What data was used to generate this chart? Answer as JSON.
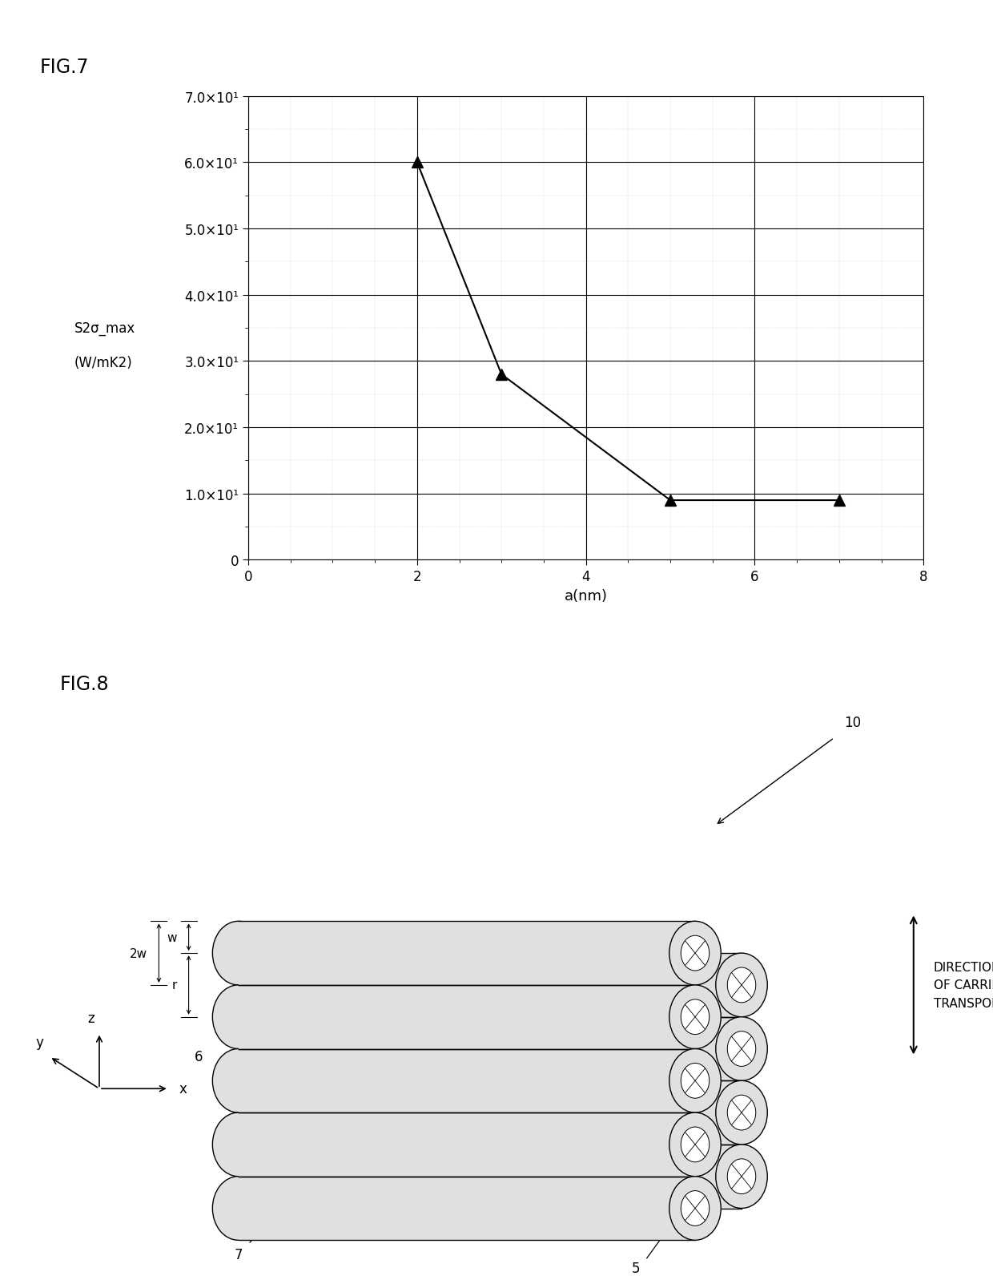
{
  "fig7": {
    "title": "FIG.7",
    "x_data": [
      2,
      3,
      5,
      7
    ],
    "y_data": [
      60,
      28,
      9,
      9
    ],
    "xlabel": "a(nm)",
    "ylabel_line1": "S2σ_max",
    "ylabel_line2": "(W/mK2)",
    "xlim": [
      0,
      8
    ],
    "ylim": [
      0,
      70
    ],
    "yticks": [
      0,
      10,
      20,
      30,
      40,
      50,
      60,
      70
    ],
    "ytick_labels": [
      "0",
      "1.0×10¹",
      "2.0×10¹",
      "3.0×10¹",
      "4.0×10¹",
      "5.0×10¹",
      "6.0×10¹",
      "7.0×10¹"
    ],
    "xticks": [
      0,
      2,
      4,
      6,
      8
    ],
    "xtick_labels": [
      "0",
      "2",
      "4",
      "6",
      "8"
    ],
    "line_color": "#000000",
    "marker_color": "#000000"
  },
  "fig8": {
    "title": "FIG.8",
    "label_10": "10",
    "label_5": "5",
    "label_6": "6",
    "label_7": "7",
    "label_w": "w",
    "label_r": "r",
    "label_2w": "2w",
    "direction_text": "DIRECTION\nOF CARRIER\nTRANSPORT"
  }
}
